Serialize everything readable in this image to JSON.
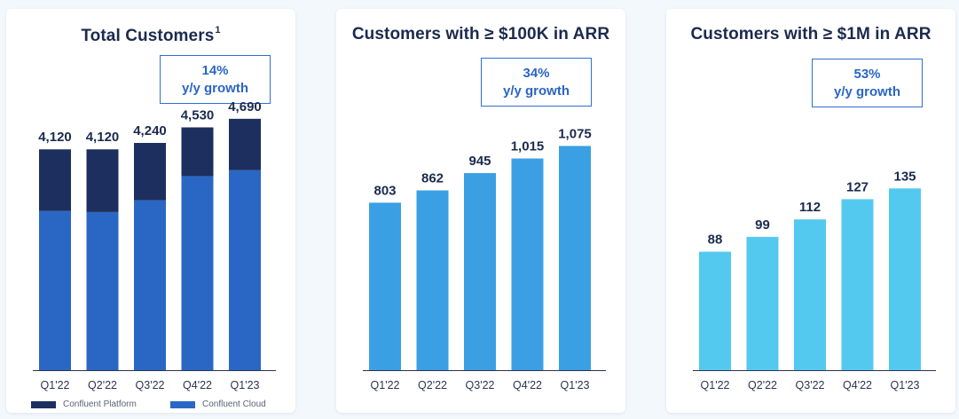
{
  "chart_data": [
    {
      "type": "bar",
      "stacked": true,
      "title": "Total Customers",
      "title_sup": "1",
      "growth_value": "14%",
      "growth_label": "y/y growth",
      "categories": [
        "Q1'22",
        "Q2'22",
        "Q3'22",
        "Q4'22",
        "Q1'23"
      ],
      "totals": [
        "4,120",
        "4,120",
        "4,240",
        "4,530",
        "4,690"
      ],
      "series": [
        {
          "name": "Confluent Cloud",
          "color": "#2a67c5",
          "values": [
            2970,
            2950,
            3170,
            3620,
            3730
          ]
        },
        {
          "name": "Confluent Platform",
          "color": "#1d2f5e",
          "values": [
            1150,
            1170,
            1070,
            910,
            960
          ]
        }
      ],
      "ylim": [
        0,
        5300
      ],
      "legend_position": "bottom"
    },
    {
      "type": "bar",
      "title": "Customers with ≥ $100K in ARR",
      "growth_value": "34%",
      "growth_label": "y/y growth",
      "categories": [
        "Q1'22",
        "Q2'22",
        "Q3'22",
        "Q4'22",
        "Q1'23"
      ],
      "labels": [
        "803",
        "862",
        "945",
        "1,015",
        "1,075"
      ],
      "values": [
        803,
        862,
        945,
        1015,
        1075
      ],
      "color": "#3aa0e3",
      "ylim": [
        0,
        1362
      ]
    },
    {
      "type": "bar",
      "title": "Customers with ≥ $1M in ARR",
      "growth_value": "53%",
      "growth_label": "y/y growth",
      "categories": [
        "Q1'22",
        "Q2'22",
        "Q3'22",
        "Q4'22",
        "Q1'23"
      ],
      "labels": [
        "88",
        "99",
        "112",
        "127",
        "135"
      ],
      "values": [
        88,
        99,
        112,
        127,
        135
      ],
      "color": "#54c9ef",
      "ylim": [
        0,
        211
      ]
    }
  ]
}
